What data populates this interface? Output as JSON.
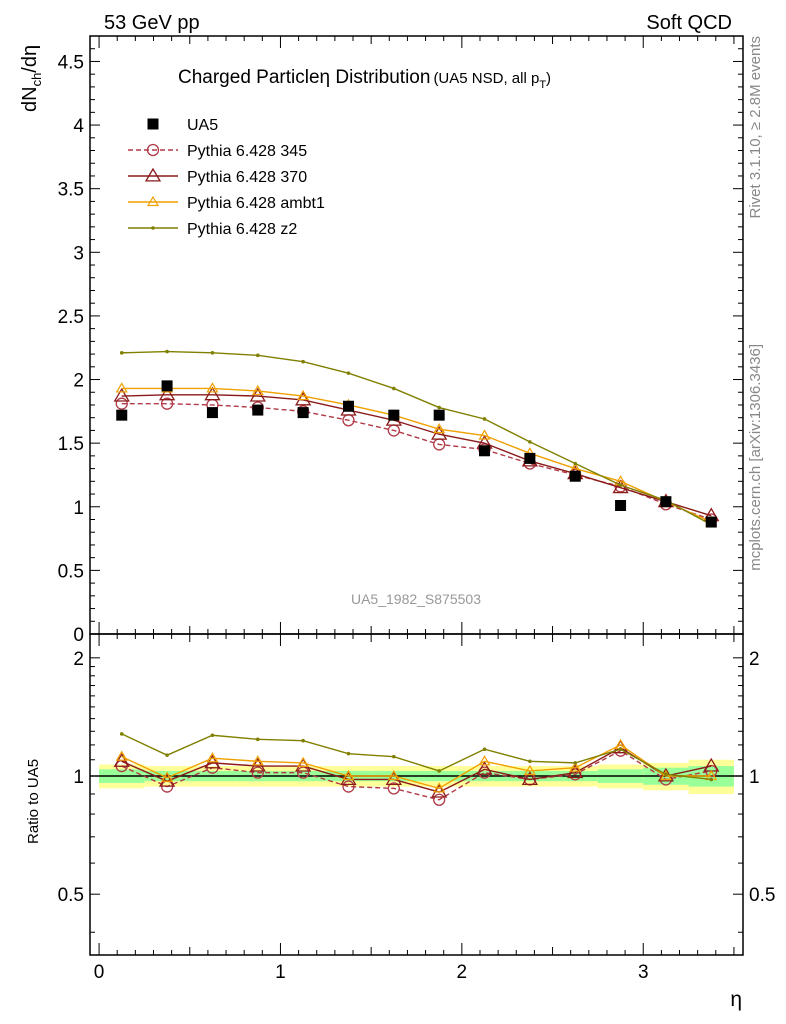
{
  "header": {
    "left": "53 GeV pp",
    "right": "Soft QCD"
  },
  "side_labels": {
    "rivet": "Rivet 3.1.10, ≥ 2.8M events",
    "mcplots": "mcplots.cern.ch [arXiv:1306.3436]"
  },
  "watermark": "UA5_1982_S875503",
  "main_title": "Charged Particle",
  "main_title_sym": "η",
  "main_title_rest": " Distribution",
  "title_note": "(UA5 NSD, all p",
  "title_note_sub": "T",
  "title_note_end": ")",
  "ylabel_main": "dN",
  "ylabel_sub": "ch",
  "ylabel_tail": "/dη",
  "ylabel_ratio": "Ratio to UA5",
  "xlabel": "η",
  "chart_data": [
    {
      "type": "line",
      "panel": "main",
      "xlim": [
        -0.05,
        3.55
      ],
      "ylim": [
        0,
        4.7
      ],
      "yticks": [
        "0",
        "0.5",
        "1",
        "1.5",
        "2",
        "2.5",
        "3",
        "3.5",
        "4",
        "4.5"
      ],
      "ytick_values": [
        0,
        0.5,
        1,
        1.5,
        2,
        2.5,
        3,
        3.5,
        4,
        4.5
      ],
      "x": [
        0.125,
        0.375,
        0.625,
        0.875,
        1.125,
        1.375,
        1.625,
        1.875,
        2.125,
        2.375,
        2.625,
        2.875,
        3.125,
        3.375
      ],
      "series": [
        {
          "name": "UA5",
          "color": "#000000",
          "style": "data",
          "values": [
            1.72,
            1.95,
            1.74,
            1.76,
            1.74,
            1.79,
            1.72,
            1.72,
            1.44,
            1.38,
            1.24,
            1.01,
            1.04,
            0.88
          ]
        },
        {
          "name": "Pythia 6.428 345",
          "color": "#b03a48",
          "style": "dash-circle",
          "values": [
            1.81,
            1.81,
            1.8,
            1.78,
            1.75,
            1.68,
            1.6,
            1.49,
            1.45,
            1.34,
            1.25,
            1.16,
            1.02,
            0.9
          ]
        },
        {
          "name": "Pythia 6.428 370",
          "color": "#8b1a1a",
          "style": "solid-triangle",
          "values": [
            1.87,
            1.88,
            1.88,
            1.87,
            1.84,
            1.76,
            1.68,
            1.57,
            1.5,
            1.36,
            1.26,
            1.15,
            1.04,
            0.93
          ]
        },
        {
          "name": "Pythia 6.428 ambt1",
          "color": "#f0a000",
          "style": "solid-smalltriangle",
          "values": [
            1.93,
            1.93,
            1.93,
            1.91,
            1.87,
            1.8,
            1.72,
            1.61,
            1.56,
            1.42,
            1.3,
            1.2,
            1.04,
            0.88
          ]
        },
        {
          "name": "Pythia 6.428 z2",
          "color": "#808000",
          "style": "solid-dot",
          "values": [
            2.21,
            2.22,
            2.21,
            2.19,
            2.14,
            2.05,
            1.93,
            1.78,
            1.69,
            1.51,
            1.34,
            1.17,
            1.05,
            0.86
          ]
        }
      ]
    },
    {
      "type": "line",
      "panel": "ratio",
      "xlim": [
        -0.05,
        3.55
      ],
      "ylim": [
        0.35,
        2.3
      ],
      "yticks": [
        "0.5",
        "1",
        "2"
      ],
      "ytick_values": [
        0.5,
        1,
        2
      ],
      "xticks": [
        "0",
        "1",
        "2",
        "3"
      ],
      "xtick_values": [
        0,
        1,
        2,
        3
      ],
      "x": [
        0.125,
        0.375,
        0.625,
        0.875,
        1.125,
        1.375,
        1.625,
        1.875,
        2.125,
        2.375,
        2.625,
        2.875,
        3.125,
        3.375
      ],
      "bands": {
        "inner": [
          0.04,
          0.03,
          0.03,
          0.03,
          0.03,
          0.03,
          0.03,
          0.03,
          0.03,
          0.03,
          0.03,
          0.04,
          0.05,
          0.06
        ],
        "outer": [
          0.07,
          0.06,
          0.06,
          0.06,
          0.06,
          0.06,
          0.06,
          0.06,
          0.06,
          0.06,
          0.06,
          0.07,
          0.08,
          0.1
        ]
      },
      "series": [
        {
          "name": "Pythia 6.428 345",
          "color": "#b03a48",
          "style": "dash-circle",
          "values": [
            1.06,
            0.94,
            1.05,
            1.02,
            1.02,
            0.94,
            0.93,
            0.87,
            1.02,
            0.98,
            1.01,
            1.16,
            0.98,
            1.03
          ]
        },
        {
          "name": "Pythia 6.428 370",
          "color": "#8b1a1a",
          "style": "solid-triangle",
          "values": [
            1.09,
            0.97,
            1.08,
            1.06,
            1.06,
            0.98,
            0.98,
            0.91,
            1.04,
            0.98,
            1.02,
            1.18,
            1.0,
            1.06
          ]
        },
        {
          "name": "Pythia 6.428 ambt1",
          "color": "#f0a000",
          "style": "solid-smalltriangle",
          "values": [
            1.12,
            0.99,
            1.11,
            1.09,
            1.08,
            1.0,
            1.0,
            0.93,
            1.09,
            1.03,
            1.05,
            1.2,
            1.0,
            1.0
          ]
        },
        {
          "name": "Pythia 6.428 z2",
          "color": "#808000",
          "style": "solid-dot",
          "values": [
            1.28,
            1.13,
            1.27,
            1.24,
            1.23,
            1.14,
            1.12,
            1.03,
            1.17,
            1.09,
            1.08,
            1.17,
            1.01,
            0.98
          ]
        }
      ]
    }
  ]
}
